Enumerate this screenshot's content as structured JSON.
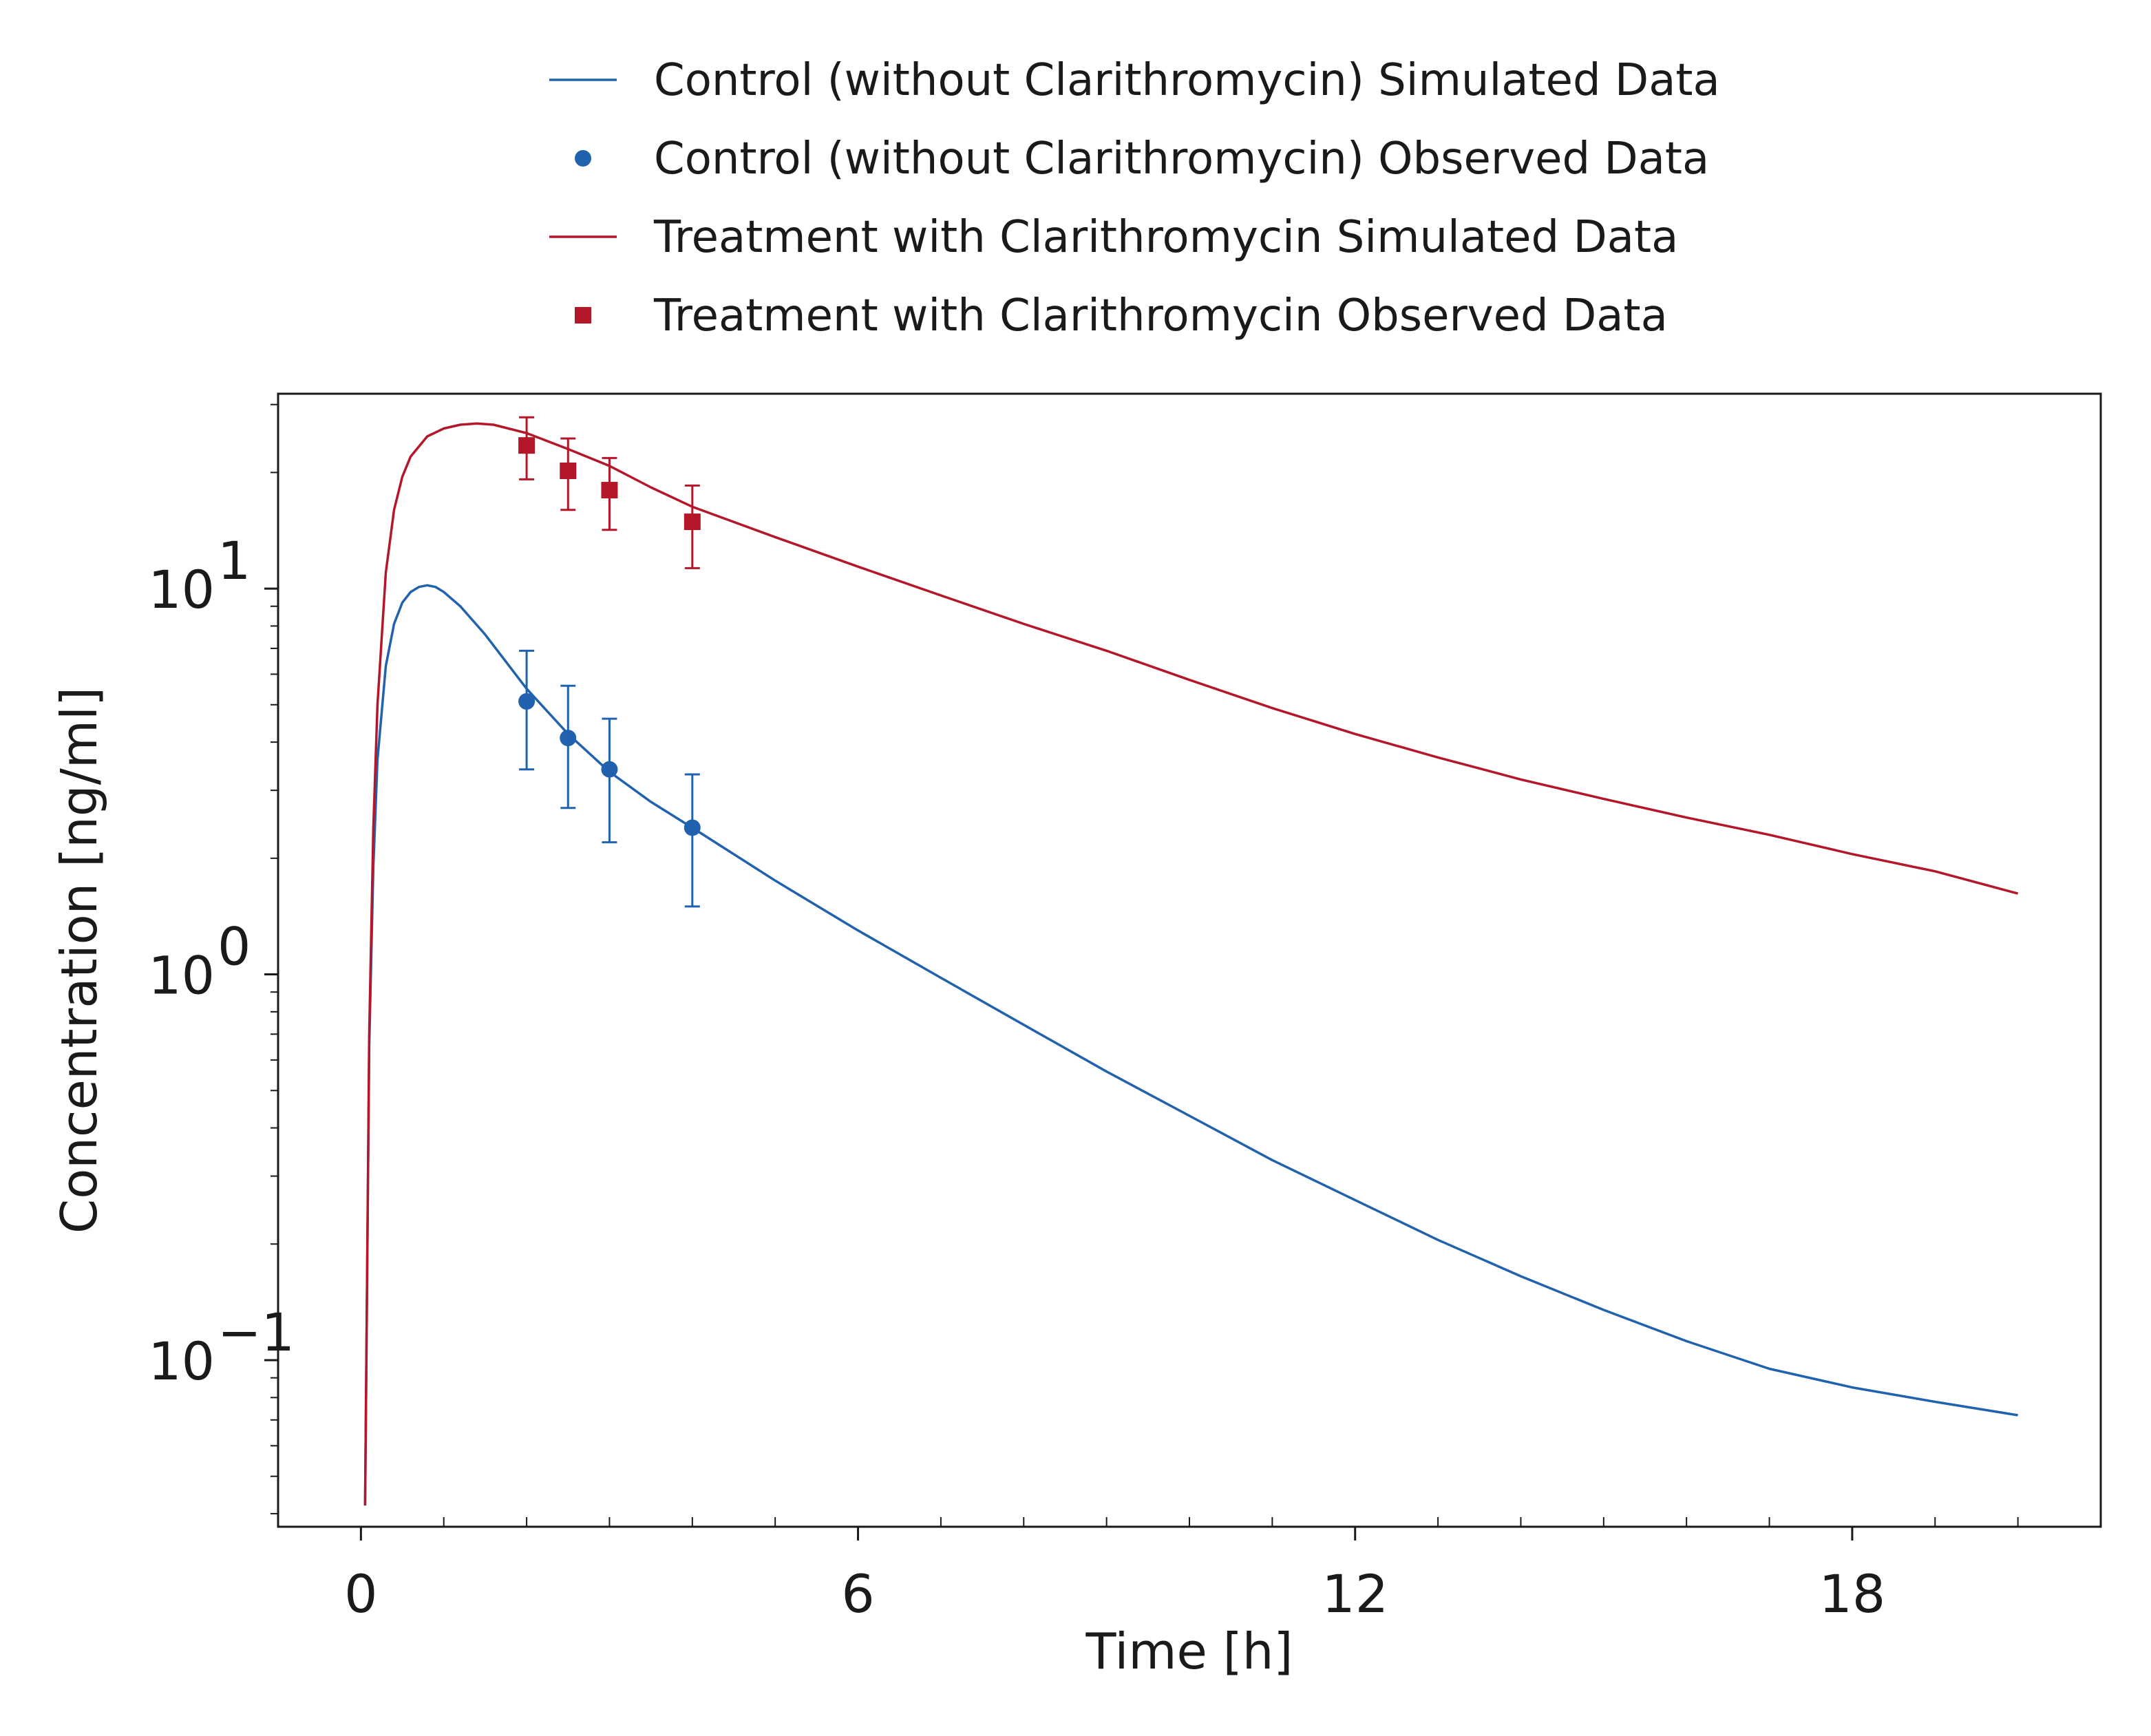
{
  "chart_data": {
    "type": "line",
    "title": "",
    "xlabel": "Time [h]",
    "ylabel": "Concentration [ng/ml]",
    "xlim": [
      -1,
      21
    ],
    "ylim": [
      0.037,
      32
    ],
    "yscale": "log",
    "x_ticks": [
      0,
      6,
      12,
      18
    ],
    "x_tick_labels": [
      "0",
      "6",
      "12",
      "18"
    ],
    "y_ticks": [
      {
        "value": 0.1,
        "base": "10",
        "exp": "−1"
      },
      {
        "value": 1,
        "base": "10",
        "exp": "0"
      },
      {
        "value": 10,
        "base": "10",
        "exp": "1"
      }
    ],
    "grid": false,
    "legend_position": "top",
    "series": [
      {
        "name": "Control (without Clarithromycin) Simulated Data",
        "kind": "line",
        "color": "#2062ad",
        "x": [
          0.05,
          0.1,
          0.15,
          0.2,
          0.3,
          0.4,
          0.5,
          0.6,
          0.7,
          0.8,
          0.9,
          1.0,
          1.2,
          1.5,
          2.0,
          2.5,
          3.0,
          3.5,
          4.0,
          5.0,
          6.0,
          7.0,
          8.0,
          9.0,
          10.0,
          11.0,
          12.0,
          13.0,
          14.0,
          15.0,
          16.0,
          17.0,
          18.0,
          19.0,
          20.0
        ],
        "y": [
          0.042,
          0.65,
          1.9,
          3.6,
          6.3,
          8.1,
          9.2,
          9.8,
          10.1,
          10.2,
          10.1,
          9.8,
          9.0,
          7.6,
          5.5,
          4.2,
          3.35,
          2.8,
          2.4,
          1.75,
          1.3,
          0.98,
          0.74,
          0.56,
          0.43,
          0.33,
          0.26,
          0.205,
          0.165,
          0.135,
          0.112,
          0.095,
          0.085,
          0.078,
          0.072
        ]
      },
      {
        "name": "Control (without Clarithromycin) Observed Data",
        "kind": "scatter",
        "marker": "circle",
        "color": "#2062ad",
        "x": [
          2.0,
          2.5,
          3.0,
          4.0
        ],
        "y": [
          5.1,
          4.1,
          3.4,
          2.4
        ],
        "y_err_low": [
          3.4,
          2.7,
          2.2,
          1.5
        ],
        "y_err_high": [
          6.9,
          5.6,
          4.6,
          3.3
        ]
      },
      {
        "name": "Treatment with Clarithromycin Simulated Data",
        "kind": "line",
        "color": "#b5172a",
        "x": [
          0.05,
          0.1,
          0.15,
          0.2,
          0.3,
          0.4,
          0.5,
          0.6,
          0.8,
          1.0,
          1.2,
          1.4,
          1.6,
          2.0,
          2.5,
          3.0,
          3.5,
          4.0,
          5.0,
          6.0,
          7.0,
          8.0,
          9.0,
          10.0,
          11.0,
          12.0,
          13.0,
          14.0,
          15.0,
          16.0,
          17.0,
          18.0,
          19.0,
          20.0
        ],
        "y": [
          0.042,
          0.7,
          2.4,
          5.0,
          11.0,
          16.0,
          19.5,
          22.0,
          24.8,
          26.0,
          26.6,
          26.8,
          26.6,
          25.3,
          23.0,
          20.8,
          18.3,
          16.3,
          13.6,
          11.4,
          9.6,
          8.1,
          6.9,
          5.8,
          4.9,
          4.2,
          3.65,
          3.2,
          2.85,
          2.55,
          2.3,
          2.05,
          1.85,
          1.62
        ]
      },
      {
        "name": "Treatment with Clarithromycin Observed Data",
        "kind": "scatter",
        "marker": "square",
        "color": "#b5172a",
        "x": [
          2.0,
          2.5,
          3.0,
          4.0
        ],
        "y": [
          23.5,
          20.2,
          18.0,
          14.9
        ],
        "y_err_low": [
          19.2,
          16.0,
          14.2,
          11.3
        ],
        "y_err_high": [
          27.8,
          24.5,
          21.8,
          18.5
        ]
      }
    ]
  }
}
